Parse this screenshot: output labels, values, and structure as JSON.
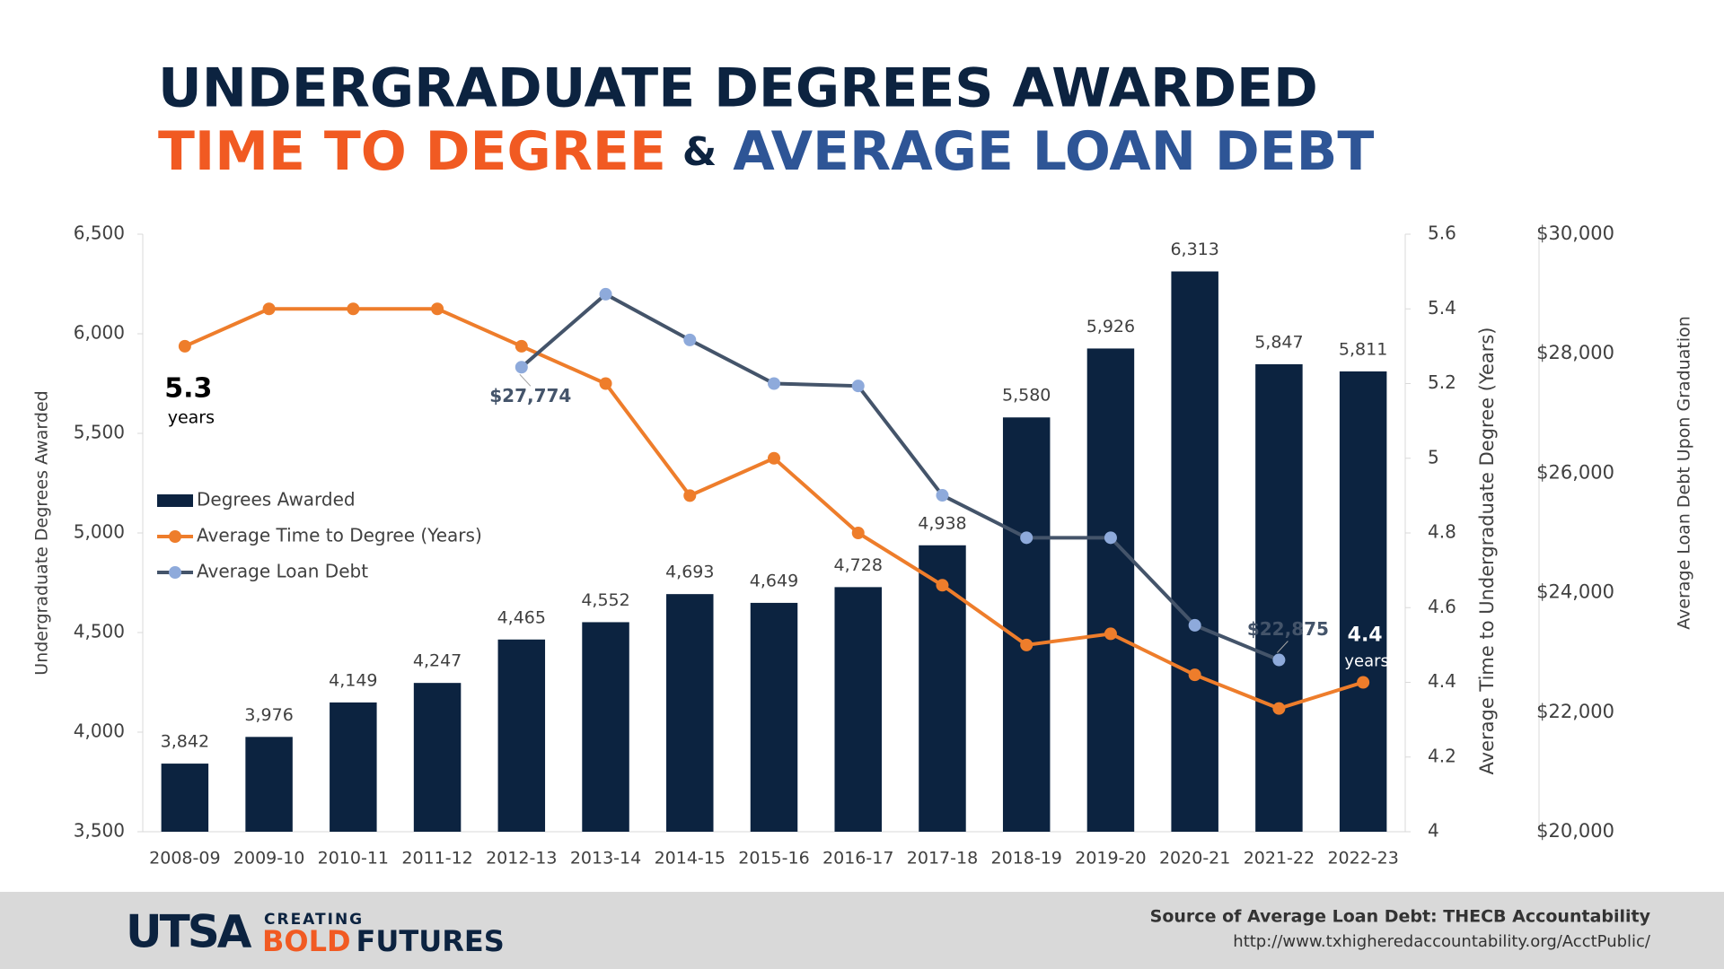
{
  "chart_data": {
    "type": "bar",
    "title": "UNDERGRADUATE DEGREES AWARDED",
    "subtitle": {
      "part1": "TIME TO DEGREE",
      "joiner": "&",
      "part2": "AVERAGE LOAN DEBT"
    },
    "categories": [
      "2008-09",
      "2009-10",
      "2010-11",
      "2011-12",
      "2012-13",
      "2013-14",
      "2014-15",
      "2015-16",
      "2016-17",
      "2017-18",
      "2018-19",
      "2019-20",
      "2020-21",
      "2021-22",
      "2022-23"
    ],
    "series": [
      {
        "name": "Degrees Awarded",
        "type": "bar",
        "color": "#0c2340",
        "values": [
          3842,
          3976,
          4149,
          4247,
          4465,
          4552,
          4693,
          4649,
          4728,
          4938,
          5580,
          5926,
          6313,
          5847,
          5811
        ],
        "value_labels": [
          "3,842",
          "3,976",
          "4,149",
          "4,247",
          "4,465",
          "4,552",
          "4,693",
          "4,649",
          "4,728",
          "4,938",
          "5,580",
          "5,926",
          "6,313",
          "5,847",
          "5,811"
        ]
      },
      {
        "name": "Average Time to Degree (Years)",
        "type": "line",
        "axis": "y2",
        "color": "#ee7d2b",
        "point_note": "years",
        "values": [
          5.3,
          5.4,
          5.4,
          5.4,
          5.3,
          5.2,
          4.9,
          5.0,
          4.8,
          4.66,
          4.5,
          4.53,
          4.42,
          4.33,
          4.4
        ]
      },
      {
        "name": "Average Loan Debt",
        "type": "line",
        "axis": "y3",
        "color": "#44546a",
        "marker_color": "#8eaadb",
        "values": [
          null,
          null,
          null,
          null,
          27774,
          28995,
          28230,
          27500,
          27460,
          25630,
          24920,
          24920,
          23455,
          22875,
          null
        ],
        "value_labels": [
          null,
          null,
          null,
          null,
          "$27,774",
          null,
          null,
          null,
          null,
          null,
          null,
          null,
          null,
          "$22,875",
          null
        ]
      }
    ],
    "ylabel": "Undergraduate Degrees Awarded",
    "y2label": "Average Time to Undergraduate Degree (Years)",
    "y3label": "Average Loan Debt Upon Graduation",
    "ylim": [
      3500,
      6500
    ],
    "yticks": [
      {
        "value": 3500,
        "label": "3,500"
      },
      {
        "value": 4000,
        "label": "4,000"
      },
      {
        "value": 4500,
        "label": "4,500"
      },
      {
        "value": 5000,
        "label": "5,000"
      },
      {
        "value": 5500,
        "label": "5,500"
      },
      {
        "value": 6000,
        "label": "6,000"
      },
      {
        "value": 6500,
        "label": "6,500"
      }
    ],
    "y2lim": [
      4,
      5.6
    ],
    "y2ticks": [
      4,
      4.2,
      4.4,
      4.6,
      4.8,
      5,
      5.2,
      5.4,
      5.6
    ],
    "y3lim": [
      20000,
      30000
    ],
    "y3ticks": [
      {
        "value": 20000,
        "label": "$20,000"
      },
      {
        "value": 22000,
        "label": "$22,000"
      },
      {
        "value": 24000,
        "label": "$24,000"
      },
      {
        "value": 26000,
        "label": "$26,000"
      },
      {
        "value": 28000,
        "label": "$28,000"
      },
      {
        "value": 30000,
        "label": "$30,000"
      }
    ],
    "footer": {
      "logo": "UTSA",
      "tagline1": "CREATING",
      "tagline2a": "BOLD",
      "tagline2b": "FUTURES",
      "source": "Source of Average Loan Debt: THECB Accountability",
      "url": "http://www.txhigheredaccountability.org/AcctPublic/"
    }
  }
}
